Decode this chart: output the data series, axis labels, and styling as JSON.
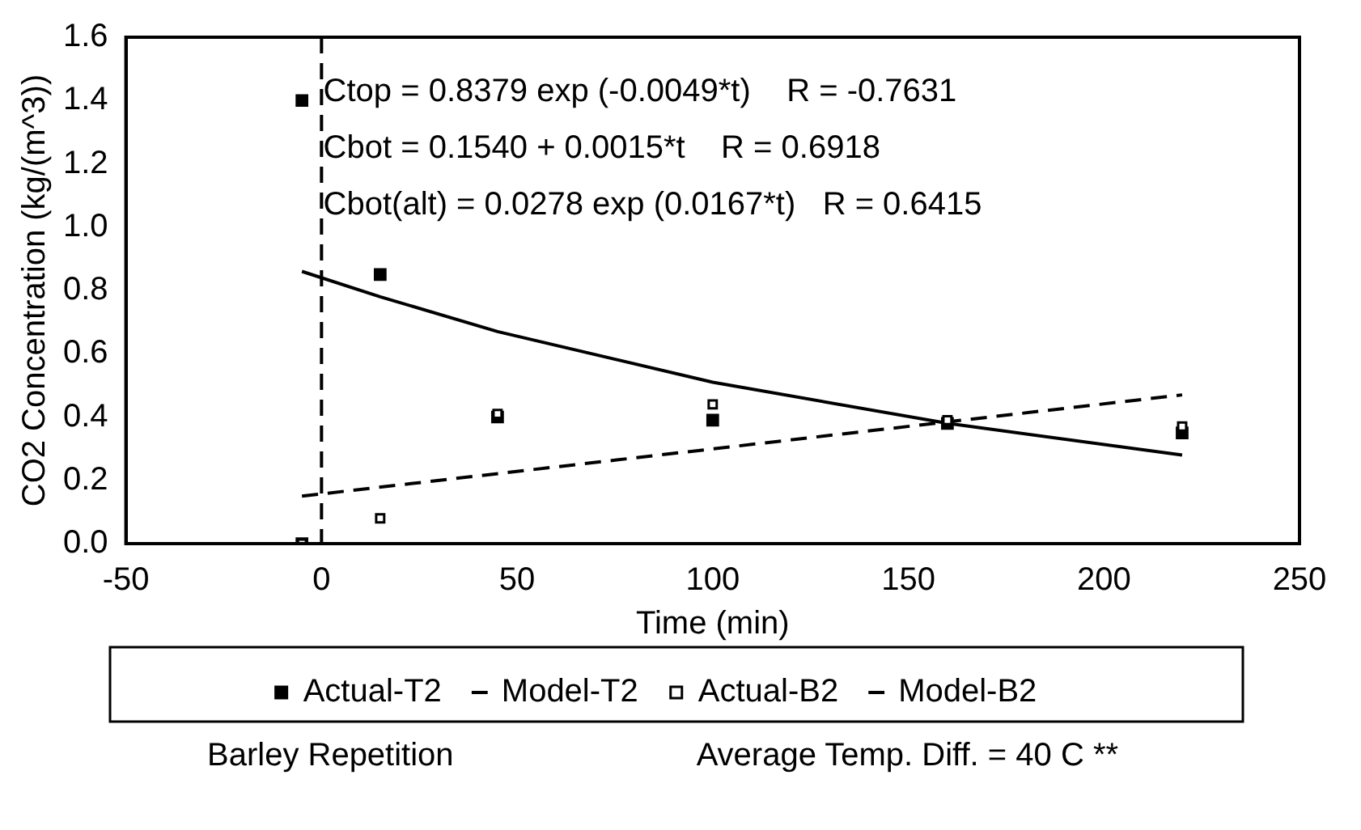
{
  "chart_data": {
    "type": "scatter",
    "xlabel": "Time (min)",
    "ylabel": "CO2 Concentration (kg/(m^3))",
    "xlim": [
      -50,
      250
    ],
    "xticks": [
      -50,
      0,
      50,
      100,
      150,
      200,
      250
    ],
    "ylim": [
      0,
      1.6
    ],
    "yticks": [
      {
        "value": 0,
        "label": "0.0"
      },
      {
        "value": 0.2,
        "label": "0.2"
      },
      {
        "value": 0.4,
        "label": "0.4"
      },
      {
        "value": 0.6,
        "label": "0.6"
      },
      {
        "value": 0.8,
        "label": "0.8"
      },
      {
        "value": 1.0,
        "label": "1.0"
      },
      {
        "value": 1.2,
        "label": "1.2"
      },
      {
        "value": 1.4,
        "label": "1.4"
      },
      {
        "value": 1.6,
        "label": "1.6"
      }
    ],
    "grid": false,
    "legend": "bottom",
    "series": [
      {
        "name": "Actual-T2",
        "marker": "square",
        "color": "#000000",
        "x": [
          -5,
          -5,
          15,
          45,
          100,
          160,
          220
        ],
        "values": [
          1.4,
          0.0,
          0.85,
          0.4,
          0.39,
          0.38,
          0.35
        ]
      },
      {
        "name": "Model-T2",
        "type": "line",
        "marker": "none",
        "line_style": "solid",
        "color": "#000000",
        "x": [
          -5,
          15,
          45,
          100,
          160,
          220
        ],
        "values": [
          0.86,
          0.78,
          0.67,
          0.51,
          0.38,
          0.28
        ]
      },
      {
        "name": "Actual-B2",
        "marker": "square",
        "color": "#000000",
        "x": [
          -5,
          15,
          45,
          100,
          160,
          220
        ],
        "values": [
          0.0,
          0.08,
          0.41,
          0.44,
          0.39,
          0.37
        ]
      },
      {
        "name": "Model-B2",
        "type": "line",
        "marker": "none",
        "line_style": "dashed",
        "color": "#000000",
        "x": [
          -5,
          220
        ],
        "values": [
          0.15,
          0.47
        ]
      }
    ],
    "ref_lines": [
      {
        "axis": "x",
        "value": 0,
        "line_style": "dashed",
        "color": "#000000"
      }
    ],
    "annotations": [
      "Ctop = 0.8379 exp (-0.0049*t)    R = -0.7631",
      "Cbot = 0.1540 + 0.0015*t    R = 0.6918",
      "Cbot(alt) = 0.0278 exp (0.0167*t)   R = 0.6415",
      "Barley Repetition",
      "Average Temp. Diff. = 40 C **"
    ]
  }
}
